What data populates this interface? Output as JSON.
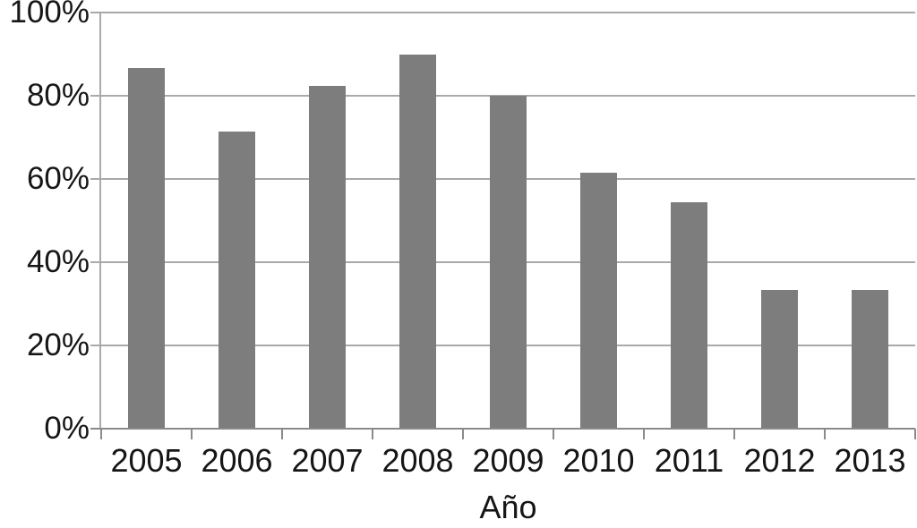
{
  "chart_data": {
    "type": "bar",
    "categories": [
      "2005",
      "2006",
      "2007",
      "2008",
      "2009",
      "2010",
      "2011",
      "2012",
      "2013"
    ],
    "values": [
      86.7,
      71.4,
      82.4,
      90,
      80,
      61.5,
      54.5,
      33.3,
      33.3
    ],
    "xlabel": "Año",
    "ylabel": "",
    "ylim": [
      0,
      100
    ],
    "yticks": [
      "0%",
      "20%",
      "40%",
      "60%",
      "80%",
      "100%"
    ],
    "grid": true,
    "legend": false,
    "bar_color": "#7d7d7d",
    "grid_color": "#a9a9a9",
    "axis_color": "#8a8a8a",
    "text_color": "#161616"
  }
}
